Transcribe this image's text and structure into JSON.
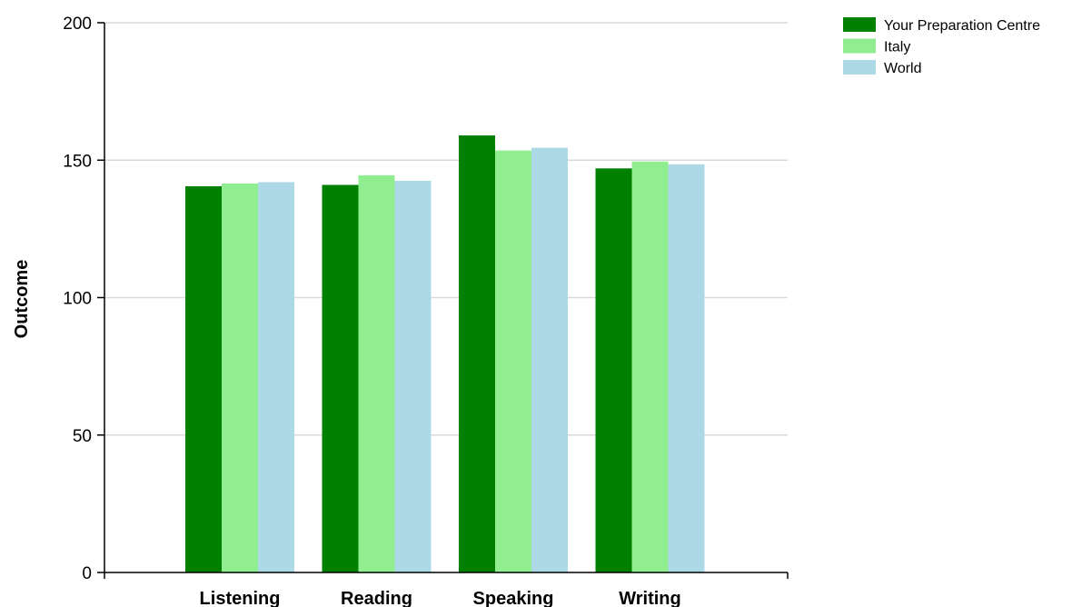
{
  "chart_data": {
    "type": "bar",
    "ylabel": "Outcome",
    "xlabel": "",
    "ylim": [
      0,
      200
    ],
    "yticks": [
      "0",
      "50",
      "100",
      "150",
      "200"
    ],
    "grid": true,
    "legend_position": "top-right",
    "categories": [
      "Listening",
      "Reading",
      "Speaking",
      "Writing"
    ],
    "series": [
      {
        "name": "Your Preparation Centre",
        "color": "#008000",
        "values": [
          140.5,
          141,
          159,
          147
        ]
      },
      {
        "name": "Italy",
        "color": "#90ee90",
        "values": [
          141.5,
          144.5,
          153.5,
          149.5
        ]
      },
      {
        "name": "World",
        "color": "#add8e6",
        "values": [
          142,
          142.5,
          154.5,
          148.5
        ]
      }
    ]
  }
}
